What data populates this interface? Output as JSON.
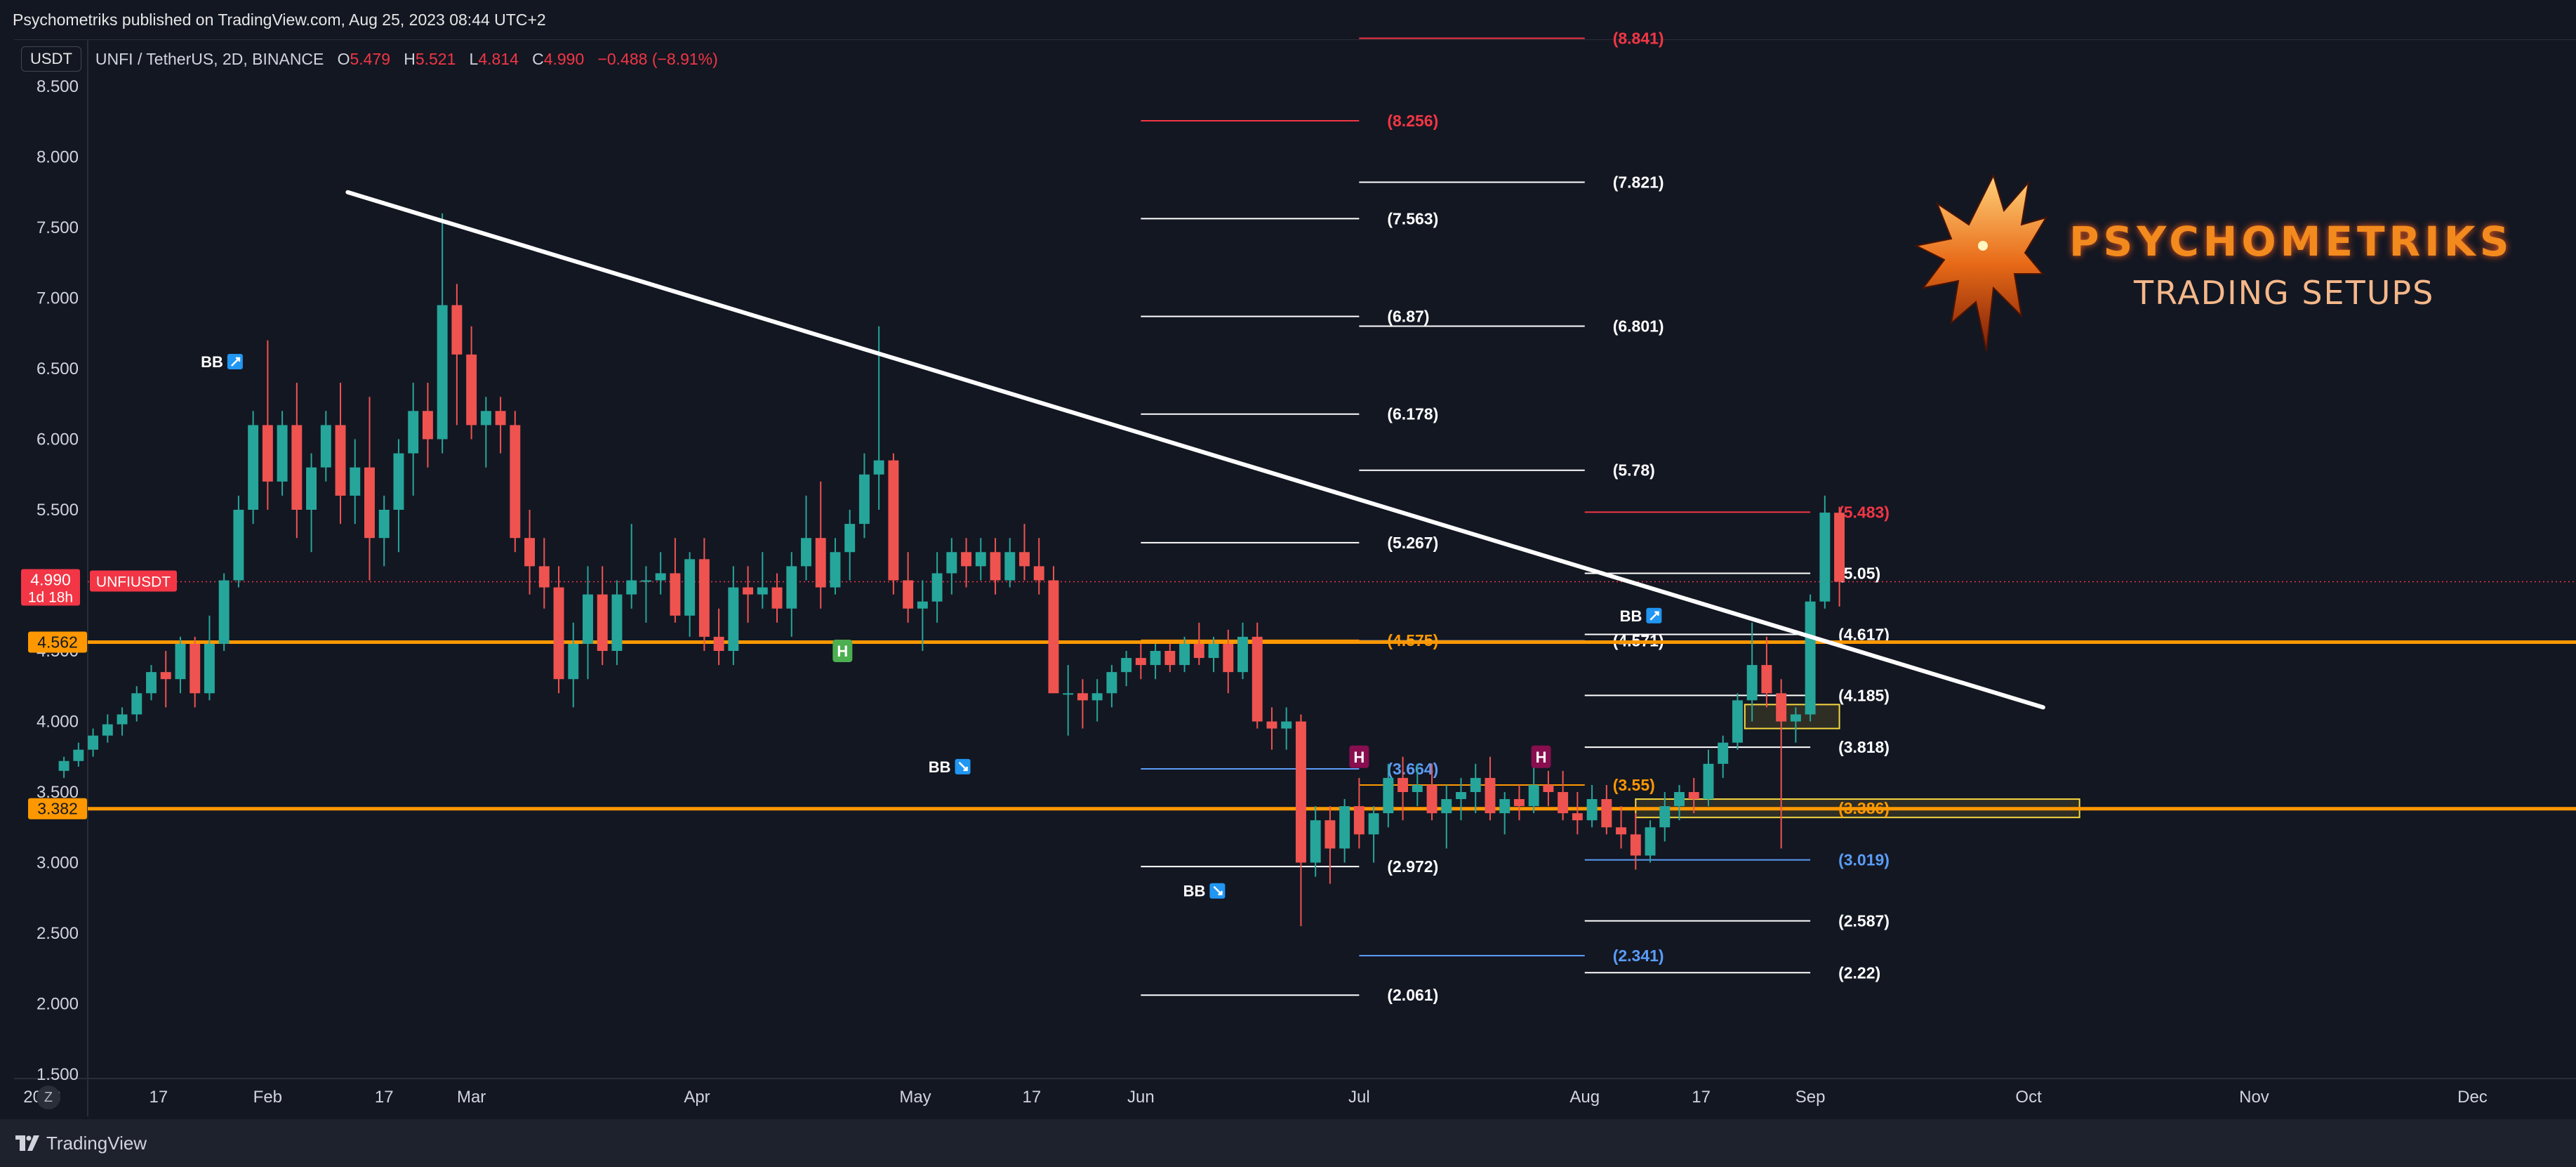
{
  "header": {
    "publish_text": "Psychometriks published on TradingView.com, Aug 25, 2023 08:44 UTC+2"
  },
  "footer": {
    "brand_text": "TradingView"
  },
  "symbol_bar": {
    "currency": "USDT",
    "symbol": "UNFI / TetherUS, 2D, BINANCE",
    "o_label": "O",
    "o_value": "5.479",
    "h_label": "H",
    "h_value": "5.521",
    "l_label": "L",
    "l_value": "4.814",
    "c_label": "C",
    "c_value": "4.990",
    "change": "−0.488 (−8.91%)"
  },
  "brand": {
    "name": "PSYCHOMETRIKS",
    "subtitle": "TRADING SETUPS"
  },
  "scale_button": "Z",
  "colors": {
    "bull": "#26a69a",
    "bear": "#ef5350",
    "background": "#131722",
    "orange": "#ff9800",
    "fib_blue": "#5b9cf6",
    "fib_red": "#f23645"
  },
  "chart_data": {
    "type": "candlestick",
    "ylim": [
      1.5,
      8.5
    ],
    "y_ticks": [
      "8.500",
      "8.000",
      "7.500",
      "7.000",
      "6.500",
      "6.000",
      "5.500",
      "5.000",
      "4.500",
      "4.000",
      "3.500",
      "3.000",
      "2.500",
      "2.000",
      "1.500"
    ],
    "x_ticks": [
      "2023",
      "17",
      "Feb",
      "17",
      "Mar",
      "Apr",
      "May",
      "17",
      "Jun",
      "Jul",
      "Aug",
      "17",
      "Sep",
      "Oct",
      "Nov",
      "Dec"
    ],
    "price_tags": [
      {
        "value": "4.990",
        "sub": "1d 18h",
        "label": "UNFIUSDT",
        "color": "#f23645"
      },
      {
        "value": "4.562",
        "color": "#ff9800"
      },
      {
        "value": "3.382",
        "color": "#ff9800"
      }
    ],
    "horizontal_levels": [
      4.562,
      3.382
    ],
    "trendline": {
      "start": [
        "2023-02-12",
        7.75
      ],
      "end": [
        "2023-10-03",
        4.1
      ]
    },
    "candles": [
      [
        3.65,
        3.75,
        3.6,
        3.72
      ],
      [
        3.72,
        3.85,
        3.68,
        3.8
      ],
      [
        3.8,
        3.95,
        3.75,
        3.9
      ],
      [
        3.9,
        4.05,
        3.85,
        3.98
      ],
      [
        3.98,
        4.1,
        3.9,
        4.05
      ],
      [
        4.05,
        4.25,
        4.0,
        4.2
      ],
      [
        4.2,
        4.4,
        4.15,
        4.35
      ],
      [
        4.35,
        4.5,
        4.1,
        4.3
      ],
      [
        4.3,
        4.6,
        4.2,
        4.55
      ],
      [
        4.55,
        4.6,
        4.1,
        4.2
      ],
      [
        4.2,
        4.75,
        4.15,
        4.55
      ],
      [
        4.55,
        5.05,
        4.5,
        5.0
      ],
      [
        5.0,
        5.6,
        4.95,
        5.5
      ],
      [
        5.5,
        6.2,
        5.4,
        6.1
      ],
      [
        6.1,
        6.7,
        5.5,
        5.7
      ],
      [
        5.7,
        6.2,
        5.6,
        6.1
      ],
      [
        6.1,
        6.4,
        5.3,
        5.5
      ],
      [
        5.5,
        5.9,
        5.2,
        5.8
      ],
      [
        5.8,
        6.2,
        5.7,
        6.1
      ],
      [
        6.1,
        6.4,
        5.4,
        5.6
      ],
      [
        5.6,
        6.0,
        5.4,
        5.8
      ],
      [
        5.8,
        6.3,
        5.0,
        5.3
      ],
      [
        5.3,
        5.6,
        5.1,
        5.5
      ],
      [
        5.5,
        6.0,
        5.2,
        5.9
      ],
      [
        5.9,
        6.4,
        5.6,
        6.2
      ],
      [
        6.2,
        6.4,
        5.8,
        6.0
      ],
      [
        6.0,
        7.6,
        5.9,
        6.95
      ],
      [
        6.95,
        7.1,
        6.1,
        6.6
      ],
      [
        6.6,
        6.8,
        6.0,
        6.1
      ],
      [
        6.1,
        6.3,
        5.8,
        6.2
      ],
      [
        6.2,
        6.3,
        5.9,
        6.1
      ],
      [
        6.1,
        6.2,
        5.2,
        5.3
      ],
      [
        5.3,
        5.5,
        4.9,
        5.1
      ],
      [
        5.1,
        5.3,
        4.8,
        4.95
      ],
      [
        4.95,
        5.1,
        4.2,
        4.3
      ],
      [
        4.3,
        4.7,
        4.1,
        4.55
      ],
      [
        4.55,
        5.1,
        4.3,
        4.9
      ],
      [
        4.9,
        5.1,
        4.4,
        4.5
      ],
      [
        4.5,
        5.0,
        4.4,
        4.9
      ],
      [
        4.9,
        5.4,
        4.8,
        5.0
      ],
      [
        5.0,
        5.1,
        4.7,
        5.0
      ],
      [
        5.0,
        5.2,
        4.9,
        5.05
      ],
      [
        5.05,
        5.3,
        4.7,
        4.75
      ],
      [
        4.75,
        5.2,
        4.6,
        5.15
      ],
      [
        5.15,
        5.3,
        4.5,
        4.6
      ],
      [
        4.6,
        4.8,
        4.4,
        4.5
      ],
      [
        4.5,
        5.1,
        4.4,
        4.95
      ],
      [
        4.95,
        5.1,
        4.7,
        4.9
      ],
      [
        4.9,
        5.2,
        4.8,
        4.95
      ],
      [
        4.95,
        5.05,
        4.7,
        4.8
      ],
      [
        4.8,
        5.2,
        4.6,
        5.1
      ],
      [
        5.1,
        5.6,
        5.0,
        5.3
      ],
      [
        5.3,
        5.7,
        4.8,
        4.95
      ],
      [
        4.95,
        5.3,
        4.9,
        5.2
      ],
      [
        5.2,
        5.5,
        5.0,
        5.4
      ],
      [
        5.4,
        5.9,
        5.3,
        5.75
      ],
      [
        5.75,
        6.8,
        5.5,
        5.85
      ],
      [
        5.85,
        5.9,
        4.9,
        5.0
      ],
      [
        5.0,
        5.2,
        4.7,
        4.8
      ],
      [
        4.8,
        5.0,
        4.5,
        4.85
      ],
      [
        4.85,
        5.2,
        4.7,
        5.05
      ],
      [
        5.05,
        5.3,
        4.9,
        5.2
      ],
      [
        5.2,
        5.3,
        4.95,
        5.1
      ],
      [
        5.1,
        5.3,
        5.0,
        5.2
      ],
      [
        5.2,
        5.3,
        4.9,
        5.0
      ],
      [
        5.0,
        5.3,
        4.95,
        5.2
      ],
      [
        5.2,
        5.4,
        5.0,
        5.1
      ],
      [
        5.1,
        5.3,
        4.9,
        5.0
      ],
      [
        5.0,
        5.1,
        4.2,
        4.2
      ],
      [
        4.2,
        4.4,
        3.9,
        4.2
      ],
      [
        4.2,
        4.3,
        3.95,
        4.15
      ],
      [
        4.15,
        4.3,
        4.0,
        4.2
      ],
      [
        4.2,
        4.4,
        4.1,
        4.35
      ],
      [
        4.35,
        4.5,
        4.25,
        4.45
      ],
      [
        4.45,
        4.55,
        4.3,
        4.4
      ],
      [
        4.4,
        4.55,
        4.3,
        4.5
      ],
      [
        4.5,
        4.55,
        4.35,
        4.4
      ],
      [
        4.4,
        4.6,
        4.35,
        4.55
      ],
      [
        4.55,
        4.7,
        4.4,
        4.45
      ],
      [
        4.45,
        4.6,
        4.35,
        4.55
      ],
      [
        4.55,
        4.65,
        4.2,
        4.35
      ],
      [
        4.35,
        4.7,
        4.3,
        4.6
      ],
      [
        4.6,
        4.7,
        3.95,
        4.0
      ],
      [
        4.0,
        4.1,
        3.8,
        3.95
      ],
      [
        3.95,
        4.1,
        3.8,
        4.0
      ],
      [
        4.0,
        4.05,
        2.55,
        3.0
      ],
      [
        3.0,
        3.4,
        2.9,
        3.3
      ],
      [
        3.3,
        3.4,
        2.85,
        3.1
      ],
      [
        3.1,
        3.45,
        3.0,
        3.4
      ],
      [
        3.4,
        3.6,
        3.1,
        3.2
      ],
      [
        3.2,
        3.4,
        3.0,
        3.35
      ],
      [
        3.35,
        3.7,
        3.25,
        3.6
      ],
      [
        3.6,
        3.75,
        3.3,
        3.5
      ],
      [
        3.5,
        3.7,
        3.4,
        3.55
      ],
      [
        3.55,
        3.7,
        3.3,
        3.35
      ],
      [
        3.35,
        3.55,
        3.1,
        3.45
      ],
      [
        3.45,
        3.6,
        3.3,
        3.5
      ],
      [
        3.5,
        3.7,
        3.35,
        3.6
      ],
      [
        3.6,
        3.75,
        3.3,
        3.35
      ],
      [
        3.35,
        3.5,
        3.2,
        3.45
      ],
      [
        3.45,
        3.55,
        3.3,
        3.4
      ],
      [
        3.4,
        3.7,
        3.35,
        3.55
      ],
      [
        3.55,
        3.65,
        3.4,
        3.5
      ],
      [
        3.5,
        3.65,
        3.3,
        3.35
      ],
      [
        3.35,
        3.5,
        3.2,
        3.3
      ],
      [
        3.3,
        3.55,
        3.25,
        3.45
      ],
      [
        3.45,
        3.55,
        3.2,
        3.25
      ],
      [
        3.25,
        3.4,
        3.1,
        3.2
      ],
      [
        3.2,
        3.35,
        2.95,
        3.05
      ],
      [
        3.05,
        3.3,
        3.0,
        3.25
      ],
      [
        3.25,
        3.5,
        3.15,
        3.4
      ],
      [
        3.4,
        3.55,
        3.3,
        3.5
      ],
      [
        3.5,
        3.6,
        3.35,
        3.45
      ],
      [
        3.45,
        3.8,
        3.4,
        3.7
      ],
      [
        3.7,
        3.9,
        3.6,
        3.85
      ],
      [
        3.85,
        4.2,
        3.8,
        4.15
      ],
      [
        4.15,
        4.7,
        4.0,
        4.4
      ],
      [
        4.4,
        4.6,
        4.1,
        4.2
      ],
      [
        4.2,
        4.3,
        3.1,
        4.0
      ],
      [
        4.0,
        4.1,
        3.85,
        4.05
      ],
      [
        4.05,
        4.9,
        4.0,
        4.85
      ],
      [
        4.85,
        5.6,
        4.8,
        5.48
      ],
      [
        5.479,
        5.521,
        4.814,
        4.99
      ]
    ],
    "fib_sets": [
      {
        "x_range": [
          "2023-06-01",
          "2023-07-01"
        ],
        "levels": [
          {
            "v": 8.256,
            "label": "(8.256)",
            "color": "#f23645"
          },
          {
            "v": 7.563,
            "label": "(7.563)",
            "color": "#ffffff"
          },
          {
            "v": 6.87,
            "label": "(6.87)",
            "color": "#ffffff"
          },
          {
            "v": 6.178,
            "label": "(6.178)",
            "color": "#ffffff"
          },
          {
            "v": 5.267,
            "label": "(5.267)",
            "color": "#ffffff"
          },
          {
            "v": 4.575,
            "label": "(4.575)",
            "color": "#ff9800"
          },
          {
            "v": 3.664,
            "label": "(3.664)",
            "color": "#5b9cf6"
          },
          {
            "v": 2.972,
            "label": "(2.972)",
            "color": "#ffffff"
          },
          {
            "v": 2.061,
            "label": "(2.061)",
            "color": "#ffffff"
          }
        ]
      },
      {
        "x_range": [
          "2023-07-01",
          "2023-08-01"
        ],
        "levels": [
          {
            "v": 8.841,
            "label": "(8.841)",
            "color": "#f23645"
          },
          {
            "v": 7.821,
            "label": "(7.821)",
            "color": "#ffffff"
          },
          {
            "v": 6.801,
            "label": "(6.801)",
            "color": "#ffffff"
          },
          {
            "v": 5.78,
            "label": "(5.78)",
            "color": "#ffffff"
          },
          {
            "v": 4.571,
            "label": "(4.571)",
            "color": "#ffffff"
          },
          {
            "v": 3.55,
            "label": "(3.55)",
            "color": "#ff9800"
          },
          {
            "v": 2.341,
            "label": "(2.341)",
            "color": "#5b9cf6"
          }
        ]
      },
      {
        "x_range": [
          "2023-08-01",
          "2023-09-01"
        ],
        "levels": [
          {
            "v": 5.483,
            "label": "(5.483)",
            "color": "#f23645"
          },
          {
            "v": 5.05,
            "label": "(5.05)",
            "color": "#ffffff"
          },
          {
            "v": 4.617,
            "label": "(4.617)",
            "color": "#ffffff"
          },
          {
            "v": 4.185,
            "label": "(4.185)",
            "color": "#ffffff"
          },
          {
            "v": 3.818,
            "label": "(3.818)",
            "color": "#ffffff"
          },
          {
            "v": 3.386,
            "label": "(3.386)",
            "color": "#ff9800"
          },
          {
            "v": 3.019,
            "label": "(3.019)",
            "color": "#5b9cf6"
          },
          {
            "v": 2.587,
            "label": "(2.587)",
            "color": "#ffffff"
          },
          {
            "v": 2.22,
            "label": "(2.22)",
            "color": "#ffffff"
          }
        ]
      }
    ],
    "zones": [
      {
        "x_range": [
          "2023-08-08",
          "2023-10-08"
        ],
        "y_range": [
          3.32,
          3.45
        ],
        "color": "#f5d742"
      },
      {
        "x_range": [
          "2023-08-23",
          "2023-09-05"
        ],
        "y_range": [
          3.95,
          4.12
        ],
        "color": "#f5d742"
      }
    ],
    "markers": [
      {
        "type": "BB",
        "dir": "up",
        "date": "2023-01-28",
        "price": 6.55
      },
      {
        "type": "BB",
        "dir": "down",
        "date": "2023-05-08",
        "price": 3.68
      },
      {
        "type": "BB",
        "dir": "down",
        "date": "2023-06-12",
        "price": 2.8
      },
      {
        "type": "BB",
        "dir": "up",
        "date": "2023-08-11",
        "price": 4.75
      },
      {
        "type": "H",
        "date": "2023-04-21",
        "price": 4.5,
        "color": "#4caf50"
      },
      {
        "type": "H",
        "date": "2023-07-01",
        "price": 3.75,
        "color": "#880e4f"
      },
      {
        "type": "H",
        "date": "2023-07-26",
        "price": 3.75,
        "color": "#880e4f"
      }
    ]
  }
}
